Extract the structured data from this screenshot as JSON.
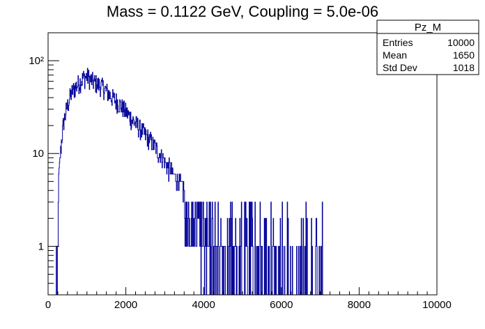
{
  "chart_data": {
    "type": "histogram",
    "title": "Mass = 0.1122 GeV, Coupling = 5.0e-06",
    "xlabel": "",
    "ylabel": "",
    "xlim": [
      0,
      10000
    ],
    "ylim": [
      0.3,
      200
    ],
    "y_scale": "log",
    "grid": false,
    "line_color": "#000099",
    "x_ticks": [
      {
        "value": 0,
        "label": "0"
      },
      {
        "value": 2000,
        "label": "2000"
      },
      {
        "value": 4000,
        "label": "4000"
      },
      {
        "value": 6000,
        "label": "6000"
      },
      {
        "value": 8000,
        "label": "8000"
      },
      {
        "value": 10000,
        "label": "10000"
      }
    ],
    "y_ticks": [
      {
        "value": 1,
        "label": "1"
      },
      {
        "value": 10,
        "label": "10"
      },
      {
        "value": 100,
        "label": "10²"
      }
    ],
    "profile": {
      "x": [
        200,
        250,
        300,
        350,
        400,
        500,
        600,
        700,
        800,
        900,
        1000,
        1100,
        1200,
        1400,
        1600,
        1800,
        2000,
        2200,
        2400,
        2600,
        2800,
        3000,
        3200,
        3400,
        3600,
        3800,
        4000,
        4400,
        4800,
        5200,
        5600,
        6000,
        6400,
        6800,
        7100
      ],
      "y": [
        1,
        3,
        8,
        15,
        22,
        33,
        45,
        52,
        58,
        65,
        68,
        62,
        58,
        52,
        42,
        35,
        28,
        22,
        18,
        14,
        11,
        8,
        6,
        4.5,
        3.5,
        2.8,
        2.2,
        1.7,
        1.4,
        1.2,
        1.1,
        1.0,
        0.9,
        0.85,
        0.8
      ]
    },
    "stats_box": {
      "title": "Pz_M",
      "rows": [
        {
          "label": "Entries",
          "value": "10000"
        },
        {
          "label": "Mean",
          "value": "1650"
        },
        {
          "label": "Std Dev",
          "value": "1018"
        }
      ]
    }
  }
}
